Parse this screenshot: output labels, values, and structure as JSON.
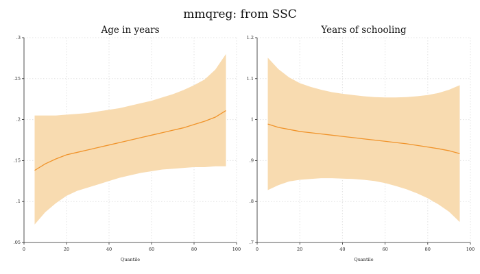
{
  "title": "mmqreg: from SSC",
  "band_color": "#f8dbb0",
  "line_color": "#f0932a",
  "grid_color": "#e2e2e2",
  "chart_data": [
    {
      "type": "area",
      "title": "Age in years",
      "xlabel": "Quantile",
      "ylabel": "",
      "xlim": [
        0,
        100
      ],
      "ylim": [
        0.05,
        0.3
      ],
      "xticks": [
        0,
        20,
        40,
        60,
        80,
        100
      ],
      "xtick_labels": [
        "0",
        "20",
        "40",
        "60",
        "80",
        "100"
      ],
      "yticks": [
        0.05,
        0.1,
        0.15,
        0.2,
        0.25,
        0.3
      ],
      "ytick_labels": [
        ".05",
        ".1",
        ".15",
        ".2",
        ".25",
        ".3"
      ],
      "grid": true,
      "x": [
        5,
        10,
        15,
        20,
        25,
        30,
        35,
        40,
        45,
        50,
        55,
        60,
        65,
        70,
        75,
        80,
        85,
        90,
        95
      ],
      "estimate": [
        0.138,
        0.146,
        0.152,
        0.157,
        0.16,
        0.163,
        0.166,
        0.169,
        0.172,
        0.175,
        0.178,
        0.181,
        0.184,
        0.187,
        0.19,
        0.194,
        0.198,
        0.203,
        0.211
      ],
      "upper": [
        0.205,
        0.205,
        0.205,
        0.206,
        0.207,
        0.208,
        0.21,
        0.212,
        0.214,
        0.217,
        0.22,
        0.223,
        0.227,
        0.231,
        0.236,
        0.242,
        0.249,
        0.261,
        0.28
      ],
      "lower": [
        0.072,
        0.087,
        0.098,
        0.107,
        0.113,
        0.117,
        0.121,
        0.125,
        0.129,
        0.132,
        0.135,
        0.137,
        0.139,
        0.14,
        0.141,
        0.142,
        0.142,
        0.143,
        0.143
      ]
    },
    {
      "type": "area",
      "title": "Years of schooling",
      "xlabel": "Quantile",
      "ylabel": "",
      "xlim": [
        0,
        100
      ],
      "ylim": [
        0.7,
        1.2
      ],
      "xticks": [
        0,
        20,
        40,
        60,
        80,
        100
      ],
      "xtick_labels": [
        "0",
        "20",
        "40",
        "60",
        "80",
        "100"
      ],
      "yticks": [
        0.7,
        0.8,
        0.9,
        1.0,
        1.1,
        1.2
      ],
      "ytick_labels": [
        ".7",
        ".8",
        ".9",
        "1",
        "1.1",
        "1.2"
      ],
      "grid": true,
      "x": [
        5,
        10,
        15,
        20,
        25,
        30,
        35,
        40,
        45,
        50,
        55,
        60,
        65,
        70,
        75,
        80,
        85,
        90,
        95
      ],
      "estimate": [
        0.989,
        0.981,
        0.976,
        0.971,
        0.968,
        0.965,
        0.962,
        0.959,
        0.956,
        0.953,
        0.95,
        0.947,
        0.944,
        0.941,
        0.937,
        0.933,
        0.929,
        0.924,
        0.917
      ],
      "upper": [
        1.151,
        1.123,
        1.103,
        1.089,
        1.08,
        1.073,
        1.067,
        1.063,
        1.06,
        1.057,
        1.055,
        1.054,
        1.054,
        1.055,
        1.057,
        1.06,
        1.065,
        1.073,
        1.084
      ],
      "lower": [
        0.828,
        0.84,
        0.849,
        0.853,
        0.855,
        0.857,
        0.857,
        0.856,
        0.855,
        0.853,
        0.85,
        0.845,
        0.838,
        0.83,
        0.82,
        0.808,
        0.793,
        0.775,
        0.75
      ]
    }
  ]
}
